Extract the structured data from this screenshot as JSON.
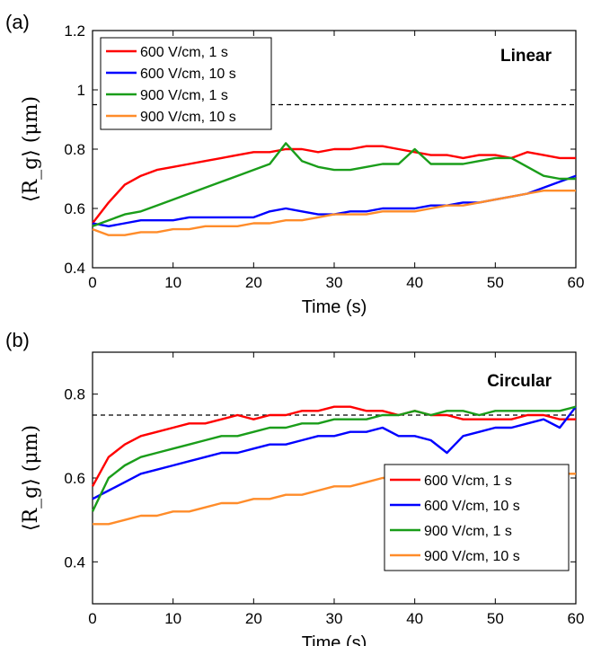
{
  "chart_data": [
    {
      "panel_label": "(a)",
      "type": "line",
      "annotation": "Linear",
      "xlabel": "Time (s)",
      "ylabel": "⟨R_g⟩ (μm)",
      "xlim": [
        0,
        60
      ],
      "ylim": [
        0.4,
        1.2
      ],
      "xticks": [
        0,
        10,
        20,
        30,
        40,
        50,
        60
      ],
      "yticks": [
        0.4,
        0.6,
        0.8,
        1,
        1.2
      ],
      "ytick_labels": [
        "0.4",
        "0.6",
        "0.8",
        "1",
        "1.2"
      ],
      "reference_line": {
        "y": 0.95,
        "style": "dashed"
      },
      "legend_position": "top-left",
      "grid": false,
      "x": [
        0,
        2,
        4,
        6,
        8,
        10,
        12,
        14,
        16,
        18,
        20,
        22,
        24,
        26,
        28,
        30,
        32,
        34,
        36,
        38,
        40,
        42,
        44,
        46,
        48,
        50,
        52,
        54,
        56,
        58,
        60
      ],
      "series": [
        {
          "name": "600 V/cm, 1 s",
          "color": "#ff0000",
          "values": [
            0.55,
            0.62,
            0.68,
            0.71,
            0.73,
            0.74,
            0.75,
            0.76,
            0.77,
            0.78,
            0.79,
            0.79,
            0.8,
            0.8,
            0.79,
            0.8,
            0.8,
            0.81,
            0.81,
            0.8,
            0.79,
            0.78,
            0.78,
            0.77,
            0.78,
            0.78,
            0.77,
            0.79,
            0.78,
            0.77,
            0.77
          ]
        },
        {
          "name": "600 V/cm, 10 s",
          "color": "#0000ff",
          "values": [
            0.55,
            0.54,
            0.55,
            0.56,
            0.56,
            0.56,
            0.57,
            0.57,
            0.57,
            0.57,
            0.57,
            0.59,
            0.6,
            0.59,
            0.58,
            0.58,
            0.59,
            0.59,
            0.6,
            0.6,
            0.6,
            0.61,
            0.61,
            0.62,
            0.62,
            0.63,
            0.64,
            0.65,
            0.67,
            0.69,
            0.71
          ]
        },
        {
          "name": "900 V/cm, 1 s",
          "color": "#1a9d1a",
          "values": [
            0.54,
            0.56,
            0.58,
            0.59,
            0.61,
            0.63,
            0.65,
            0.67,
            0.69,
            0.71,
            0.73,
            0.75,
            0.82,
            0.76,
            0.74,
            0.73,
            0.73,
            0.74,
            0.75,
            0.75,
            0.8,
            0.75,
            0.75,
            0.75,
            0.76,
            0.77,
            0.77,
            0.74,
            0.71,
            0.7,
            0.7
          ]
        },
        {
          "name": "900 V/cm, 10 s",
          "color": "#ff8c2a",
          "values": [
            0.53,
            0.51,
            0.51,
            0.52,
            0.52,
            0.53,
            0.53,
            0.54,
            0.54,
            0.54,
            0.55,
            0.55,
            0.56,
            0.56,
            0.57,
            0.58,
            0.58,
            0.58,
            0.59,
            0.59,
            0.59,
            0.6,
            0.61,
            0.61,
            0.62,
            0.63,
            0.64,
            0.65,
            0.66,
            0.66,
            0.66
          ]
        }
      ]
    },
    {
      "panel_label": "(b)",
      "type": "line",
      "annotation": "Circular",
      "xlabel": "Time (s)",
      "ylabel": "⟨R_g⟩ (μm)",
      "xlim": [
        0,
        60
      ],
      "ylim": [
        0.3,
        0.9
      ],
      "xticks": [
        0,
        10,
        20,
        30,
        40,
        50,
        60
      ],
      "yticks": [
        0.4,
        0.6,
        0.8
      ],
      "ytick_labels": [
        "0.4",
        "0.6",
        "0.8"
      ],
      "reference_line": {
        "y": 0.75,
        "style": "dashed"
      },
      "legend_position": "bottom-right",
      "grid": false,
      "x": [
        0,
        2,
        4,
        6,
        8,
        10,
        12,
        14,
        16,
        18,
        20,
        22,
        24,
        26,
        28,
        30,
        32,
        34,
        36,
        38,
        40,
        42,
        44,
        46,
        48,
        50,
        52,
        54,
        56,
        58,
        60
      ],
      "series": [
        {
          "name": "600 V/cm, 1 s",
          "color": "#ff0000",
          "values": [
            0.58,
            0.65,
            0.68,
            0.7,
            0.71,
            0.72,
            0.73,
            0.73,
            0.74,
            0.75,
            0.74,
            0.75,
            0.75,
            0.76,
            0.76,
            0.77,
            0.77,
            0.76,
            0.76,
            0.75,
            0.76,
            0.75,
            0.75,
            0.74,
            0.74,
            0.74,
            0.74,
            0.75,
            0.75,
            0.74,
            0.74
          ]
        },
        {
          "name": "600 V/cm, 10 s",
          "color": "#0000ff",
          "values": [
            0.55,
            0.57,
            0.59,
            0.61,
            0.62,
            0.63,
            0.64,
            0.65,
            0.66,
            0.66,
            0.67,
            0.68,
            0.68,
            0.69,
            0.7,
            0.7,
            0.71,
            0.71,
            0.72,
            0.7,
            0.7,
            0.69,
            0.66,
            0.7,
            0.71,
            0.72,
            0.72,
            0.73,
            0.74,
            0.72,
            0.77
          ]
        },
        {
          "name": "900 V/cm, 1 s",
          "color": "#1a9d1a",
          "values": [
            0.52,
            0.6,
            0.63,
            0.65,
            0.66,
            0.67,
            0.68,
            0.69,
            0.7,
            0.7,
            0.71,
            0.72,
            0.72,
            0.73,
            0.73,
            0.74,
            0.74,
            0.74,
            0.75,
            0.75,
            0.76,
            0.75,
            0.76,
            0.76,
            0.75,
            0.76,
            0.76,
            0.76,
            0.76,
            0.76,
            0.77
          ]
        },
        {
          "name": "900 V/cm, 10 s",
          "color": "#ff8c2a",
          "values": [
            0.49,
            0.49,
            0.5,
            0.51,
            0.51,
            0.52,
            0.52,
            0.53,
            0.54,
            0.54,
            0.55,
            0.55,
            0.56,
            0.56,
            0.57,
            0.58,
            0.58,
            0.59,
            0.6,
            0.6,
            0.6,
            0.6,
            0.6,
            0.6,
            0.6,
            0.6,
            0.6,
            0.61,
            0.61,
            0.61,
            0.61
          ]
        }
      ]
    }
  ]
}
